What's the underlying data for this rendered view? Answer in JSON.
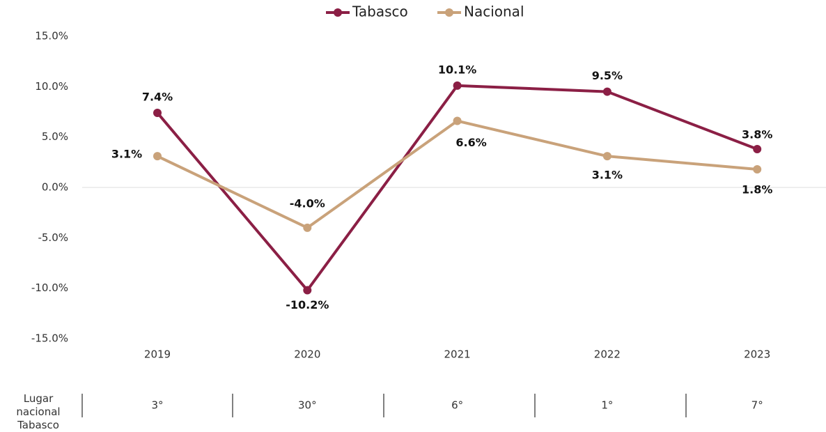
{
  "chart_data": {
    "type": "line",
    "categories": [
      "2019",
      "2020",
      "2021",
      "2022",
      "2023"
    ],
    "series": [
      {
        "name": "Tabasco",
        "color": "#8b1f45",
        "values": [
          7.4,
          -10.2,
          10.1,
          9.5,
          3.8
        ],
        "value_labels": [
          "7.4%",
          "-10.2%",
          "10.1%",
          "9.5%",
          "3.8%"
        ]
      },
      {
        "name": "Nacional",
        "color": "#c9a27a",
        "values": [
          3.1,
          -4.0,
          6.6,
          3.1,
          1.8
        ],
        "value_labels": [
          "3.1%",
          "-4.0%",
          "6.6%",
          "3.1%",
          "1.8%"
        ]
      }
    ],
    "ylim": [
      -15,
      15
    ],
    "yticks": [
      {
        "value": 15,
        "label": "15.0%"
      },
      {
        "value": 10,
        "label": "10.0%"
      },
      {
        "value": 5,
        "label": "5.0%"
      },
      {
        "value": 0,
        "label": "0.0%"
      },
      {
        "value": -5,
        "label": "-5.0%"
      },
      {
        "value": -10,
        "label": "-10.0%"
      },
      {
        "value": -15,
        "label": "-15.0%"
      }
    ],
    "grid": false,
    "legend": "top",
    "ranking": {
      "label": "Lugar nacional Tabasco",
      "values": [
        "3°",
        "30°",
        "6°",
        "1°",
        "7°"
      ]
    }
  }
}
